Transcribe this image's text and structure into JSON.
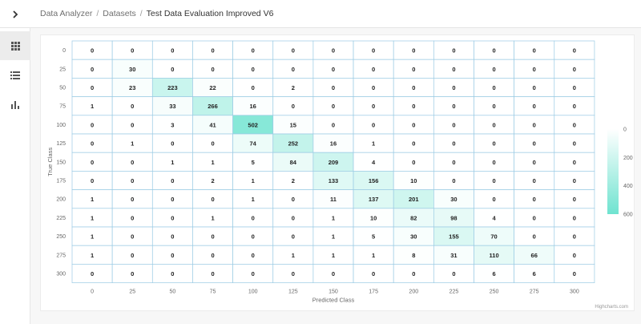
{
  "header": {
    "toggle_icon": "chevron-right-icon",
    "breadcrumb": [
      "Data Analyzer",
      "Datasets",
      "Test Data Evaluation Improved V6"
    ],
    "separator": "/"
  },
  "sidebar": {
    "items": [
      {
        "icon": "grid-icon",
        "active": true
      },
      {
        "icon": "list-icon",
        "active": false
      },
      {
        "icon": "bar-chart-icon",
        "active": false
      }
    ]
  },
  "chart_data": {
    "type": "heatmap",
    "xlabel": "Predicted Class",
    "ylabel": "True Class",
    "x_categories": [
      "0",
      "25",
      "50",
      "75",
      "100",
      "125",
      "150",
      "175",
      "200",
      "225",
      "250",
      "275",
      "300"
    ],
    "y_categories": [
      "0",
      "25",
      "50",
      "75",
      "100",
      "125",
      "150",
      "175",
      "200",
      "225",
      "250",
      "275",
      "300"
    ],
    "values": [
      [
        0,
        0,
        0,
        0,
        0,
        0,
        0,
        0,
        0,
        0,
        0,
        0,
        0
      ],
      [
        0,
        30,
        0,
        0,
        0,
        0,
        0,
        0,
        0,
        0,
        0,
        0,
        0
      ],
      [
        0,
        23,
        223,
        22,
        0,
        2,
        0,
        0,
        0,
        0,
        0,
        0,
        0
      ],
      [
        1,
        0,
        33,
        266,
        16,
        0,
        0,
        0,
        0,
        0,
        0,
        0,
        0
      ],
      [
        0,
        0,
        3,
        41,
        502,
        15,
        0,
        0,
        0,
        0,
        0,
        0,
        0
      ],
      [
        0,
        1,
        0,
        0,
        74,
        252,
        16,
        1,
        0,
        0,
        0,
        0,
        0
      ],
      [
        0,
        0,
        1,
        1,
        5,
        84,
        209,
        4,
        0,
        0,
        0,
        0,
        0
      ],
      [
        0,
        0,
        0,
        2,
        1,
        2,
        133,
        156,
        10,
        0,
        0,
        0,
        0
      ],
      [
        1,
        0,
        0,
        0,
        1,
        0,
        11,
        137,
        201,
        30,
        0,
        0,
        0
      ],
      [
        1,
        0,
        0,
        1,
        0,
        0,
        1,
        10,
        82,
        98,
        4,
        0,
        0
      ],
      [
        1,
        0,
        0,
        0,
        0,
        0,
        1,
        5,
        30,
        155,
        70,
        0,
        0
      ],
      [
        1,
        0,
        0,
        0,
        0,
        1,
        1,
        1,
        8,
        31,
        110,
        66,
        0
      ],
      [
        0,
        0,
        0,
        0,
        0,
        0,
        0,
        0,
        0,
        0,
        6,
        6,
        0
      ]
    ],
    "color_axis": {
      "min": 0,
      "max": 600,
      "min_color": "#ffffff",
      "max_color": "#6fe3d0",
      "ticks": [
        "0",
        "200",
        "400",
        "600"
      ]
    },
    "credits": "Highcharts.com"
  }
}
